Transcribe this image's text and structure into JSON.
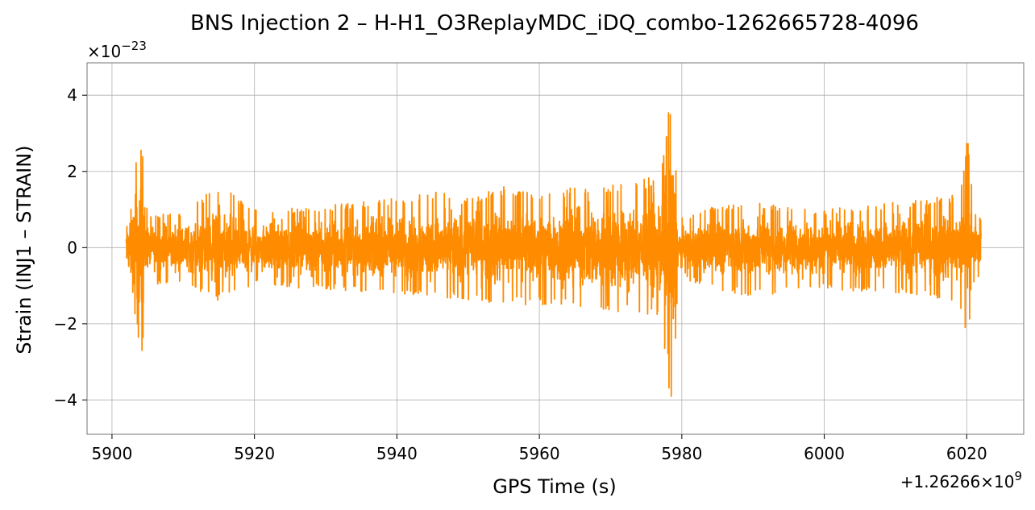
{
  "chart_data": {
    "type": "line",
    "title": "BNS Injection 2 – H-H1_O3ReplayMDC_iDQ_combo-1262665728-4096",
    "xlabel": "GPS Time (s)",
    "ylabel": "Strain (INJ1 – STRAIN)",
    "x_offset_label": "+1.26266×10",
    "x_offset_exponent": "9",
    "y_multiplier_label": "×10",
    "y_multiplier_exponent": "−23",
    "xlim": [
      5896.5,
      6028
    ],
    "ylim": [
      -4.9,
      4.85
    ],
    "x_ticks": [
      5900,
      5920,
      5940,
      5960,
      5980,
      6000,
      6020
    ],
    "x_tick_labels": [
      "5900",
      "5920",
      "5940",
      "5960",
      "5980",
      "6000",
      "6020"
    ],
    "y_ticks": [
      -4,
      -2,
      0,
      2,
      4
    ],
    "y_tick_labels": [
      "−4",
      "−2",
      "0",
      "2",
      "4"
    ],
    "grid": true,
    "series": [
      {
        "color": "#ff8c00",
        "x_range": [
          5902,
          6022
        ],
        "envelope": [
          [
            5902,
            0.8,
            -1.0
          ],
          [
            5903,
            2.2,
            -1.7
          ],
          [
            5904.3,
            2.7,
            -2.9
          ],
          [
            5905,
            0.9,
            -1.0
          ],
          [
            5910,
            0.9,
            -0.9
          ],
          [
            5915,
            1.7,
            -1.4
          ],
          [
            5920,
            1.0,
            -1.0
          ],
          [
            5930,
            1.1,
            -1.1
          ],
          [
            5940,
            1.3,
            -1.2
          ],
          [
            5945,
            1.5,
            -1.3
          ],
          [
            5950,
            1.3,
            -1.4
          ],
          [
            5955,
            1.6,
            -1.5
          ],
          [
            5960,
            1.4,
            -1.5
          ],
          [
            5965,
            1.6,
            -1.6
          ],
          [
            5970,
            1.7,
            -1.7
          ],
          [
            5975,
            1.8,
            -1.8
          ],
          [
            5977,
            2.0,
            -2.0
          ],
          [
            5978.7,
            4.4,
            -4.5
          ],
          [
            5979.5,
            0.8,
            -0.8
          ],
          [
            5985,
            1.1,
            -1.1
          ],
          [
            5990,
            1.2,
            -1.3
          ],
          [
            6000,
            1.0,
            -1.1
          ],
          [
            6010,
            1.2,
            -1.2
          ],
          [
            6015,
            1.3,
            -1.3
          ],
          [
            6019,
            1.4,
            -1.5
          ],
          [
            6020.1,
            3.0,
            -2.8
          ],
          [
            6021,
            0.9,
            -0.9
          ],
          [
            6022,
            0.8,
            -0.8
          ]
        ]
      }
    ]
  }
}
